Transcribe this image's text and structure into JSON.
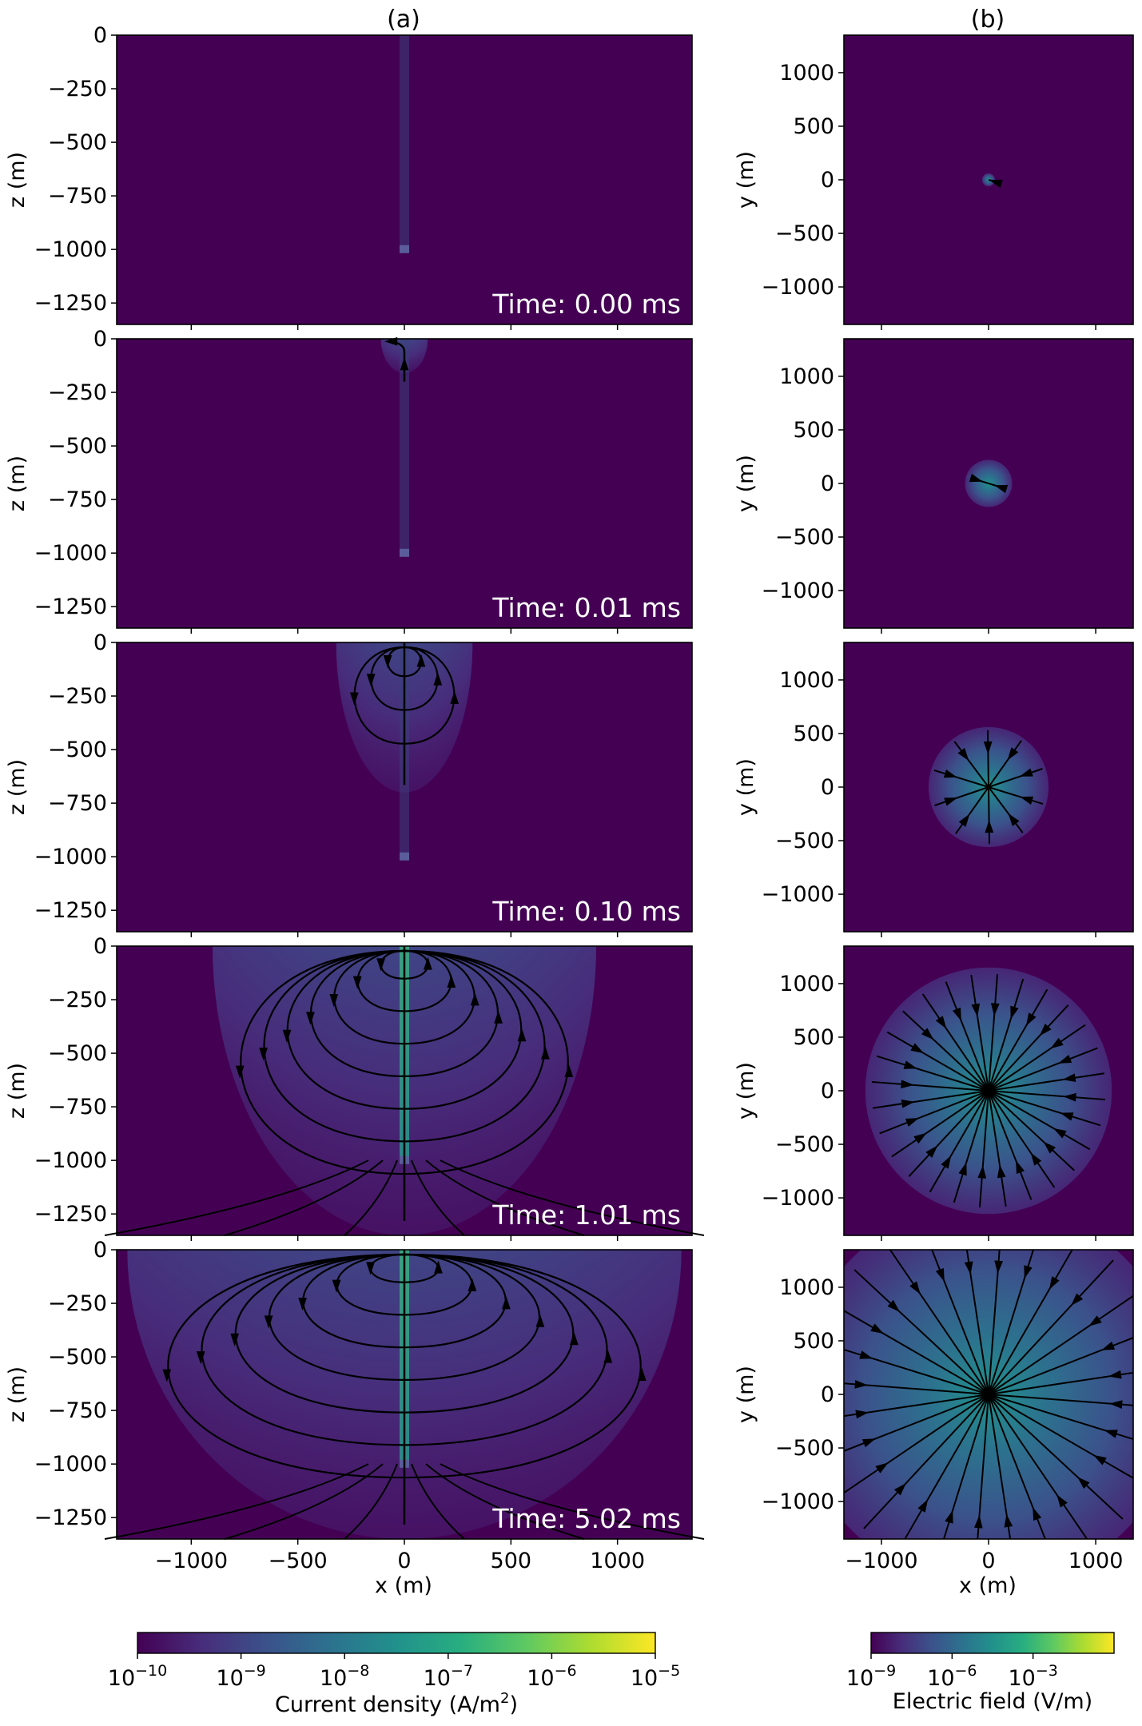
{
  "colors": {
    "background": "#440154",
    "streamline": "#000000",
    "time_label": "#ffffff"
  },
  "chart_data": [
    {
      "type": "heatmap",
      "column_title": "(a)",
      "panel": "a",
      "xlabel": "x (m)",
      "ylabel": "z (m)",
      "xlim": [
        -1350,
        1350
      ],
      "ylim": [
        -1350,
        0
      ],
      "xticks": [
        -1000,
        -500,
        0,
        500,
        1000
      ],
      "xtick_labels": [
        "−1000",
        "−500",
        "0",
        "500",
        "1000"
      ],
      "yticks": [
        0,
        -250,
        -500,
        -750,
        -1000,
        -1250
      ],
      "ytick_labels": [
        "0",
        "−250",
        "−500",
        "−750",
        "−1000",
        "−1250"
      ],
      "quantity": "Current density",
      "colormap": "viridis",
      "log_scale": true,
      "frames": [
        {
          "time_label": "Time: 0.00 ms",
          "time_ms": 0.0,
          "extent_x": 0,
          "extent_z": 0
        },
        {
          "time_label": "Time: 0.01 ms",
          "time_ms": 0.01,
          "extent_x": 110,
          "extent_z": 160
        },
        {
          "time_label": "Time: 0.10 ms",
          "time_ms": 0.1,
          "extent_x": 320,
          "extent_z": 700
        },
        {
          "time_label": "Time: 1.01 ms",
          "time_ms": 1.01,
          "extent_x": 900,
          "extent_z": 1350
        },
        {
          "time_label": "Time: 5.02 ms",
          "time_ms": 5.02,
          "extent_x": 1300,
          "extent_z": 1350
        }
      ]
    },
    {
      "type": "heatmap",
      "column_title": "(b)",
      "panel": "b",
      "xlabel": "x (m)",
      "ylabel": "y (m)",
      "xlim": [
        -1350,
        1350
      ],
      "ylim": [
        -1350,
        1350
      ],
      "xticks": [
        -1000,
        0,
        1000
      ],
      "xtick_labels": [
        "−1000",
        "0",
        "1000"
      ],
      "yticks": [
        1000,
        500,
        0,
        -500,
        -1000
      ],
      "ytick_labels": [
        "1000",
        "500",
        "0",
        "−500",
        "−1000"
      ],
      "quantity": "Electric field",
      "colormap": "viridis",
      "log_scale": true,
      "frames": [
        {
          "time_ms": 0.0,
          "radius": 60
        },
        {
          "time_ms": 0.01,
          "radius": 220
        },
        {
          "time_ms": 0.1,
          "radius": 560
        },
        {
          "time_ms": 1.01,
          "radius": 1150
        },
        {
          "time_ms": 5.02,
          "radius": 1800
        }
      ]
    }
  ],
  "colorbars": [
    {
      "label_prefix": "Current density (A/m",
      "label_sup": "2",
      "label_suffix": ")",
      "ticks": [
        {
          "base": "10",
          "exp": "−10"
        },
        {
          "base": "10",
          "exp": "−9"
        },
        {
          "base": "10",
          "exp": "−8"
        },
        {
          "base": "10",
          "exp": "−7"
        },
        {
          "base": "10",
          "exp": "−6"
        },
        {
          "base": "10",
          "exp": "−5"
        }
      ],
      "range_exp": [
        -10,
        -5
      ]
    },
    {
      "label_prefix": "Electric field (V/m)",
      "label_sup": "",
      "label_suffix": "",
      "ticks": [
        {
          "base": "10",
          "exp": "−9"
        },
        {
          "base": "10",
          "exp": "−6"
        },
        {
          "base": "10",
          "exp": "−3"
        }
      ],
      "range_exp": [
        -9,
        0
      ]
    }
  ]
}
